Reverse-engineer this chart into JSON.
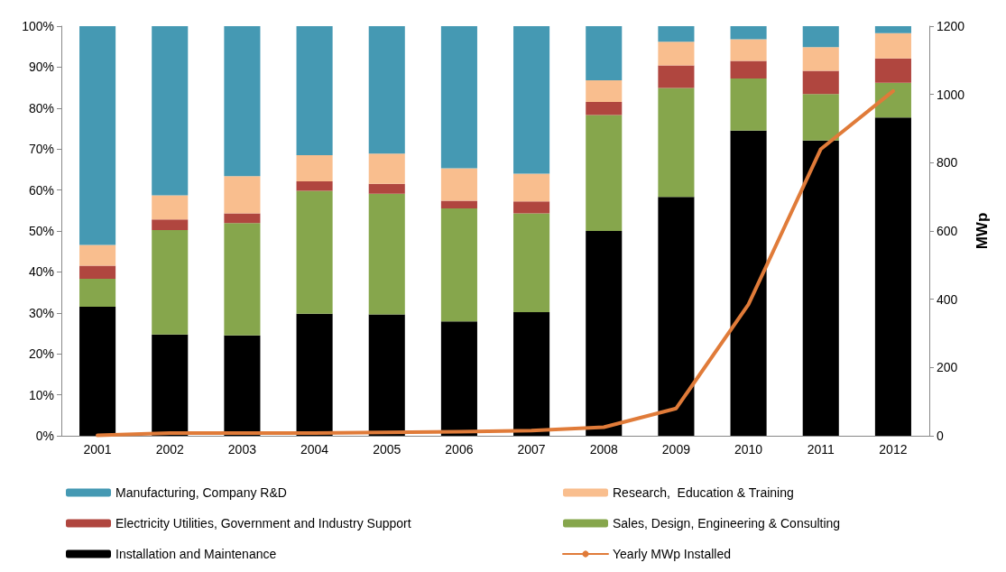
{
  "chart_data": {
    "type": "bar",
    "stacked": true,
    "y2label": "MWp",
    "categories": [
      "2001",
      "2002",
      "2003",
      "2004",
      "2005",
      "2006",
      "2007",
      "2008",
      "2009",
      "2010",
      "2011",
      "2012"
    ],
    "series": [
      {
        "name": "Installation and Maintenance",
        "color": "#000000",
        "values": [
          31.5,
          24.7,
          24.5,
          29.8,
          29.6,
          27.9,
          30.2,
          50.0,
          58.3,
          74.5,
          72.1,
          77.7
        ]
      },
      {
        "name": "Sales, Design, Engineering & Consulting",
        "color": "#86a64c",
        "values": [
          6.8,
          25.5,
          27.4,
          30.0,
          29.5,
          27.6,
          24.1,
          28.3,
          26.6,
          12.7,
          11.3,
          8.5
        ]
      },
      {
        "name": "Electricity Utilities, Government and Industry Support",
        "color": "#b0463f",
        "values": [
          3.2,
          2.6,
          2.4,
          2.3,
          2.4,
          1.9,
          2.9,
          3.2,
          5.5,
          4.3,
          5.7,
          5.9
        ]
      },
      {
        "name": "Research,  Education & Training",
        "color": "#f9be8e",
        "values": [
          5.1,
          5.9,
          9.1,
          6.4,
          7.4,
          7.9,
          6.8,
          5.3,
          5.8,
          5.3,
          5.8,
          6.2
        ]
      },
      {
        "name": "Manufacturing, Company R&D",
        "color": "#4599b3",
        "values": [
          53.4,
          41.3,
          36.6,
          31.5,
          31.1,
          34.7,
          36.0,
          13.2,
          3.8,
          3.2,
          5.1,
          1.7
        ]
      },
      {
        "name": "Yearly MWp Installed",
        "type": "line",
        "axis": "y2",
        "color": "#e07b39",
        "values": [
          1,
          8,
          8,
          8,
          10,
          12,
          15,
          25,
          80,
          385,
          840,
          1010
        ]
      }
    ],
    "ylim": [
      0,
      100
    ],
    "yticks": [
      {
        "value": 0,
        "label": "0%"
      },
      {
        "value": 10,
        "label": "10%"
      },
      {
        "value": 20,
        "label": "20%"
      },
      {
        "value": 30,
        "label": "30%"
      },
      {
        "value": 40,
        "label": "40%"
      },
      {
        "value": 50,
        "label": "50%"
      },
      {
        "value": 60,
        "label": "60%"
      },
      {
        "value": 70,
        "label": "70%"
      },
      {
        "value": 80,
        "label": "80%"
      },
      {
        "value": 90,
        "label": "90%"
      },
      {
        "value": 100,
        "label": "100%"
      }
    ],
    "y2lim": [
      0,
      1200
    ],
    "y2ticks": [
      0,
      200,
      400,
      600,
      800,
      1000,
      1200
    ],
    "grid": false,
    "legend": "bottom",
    "marker": "none",
    "line_style": "solid"
  }
}
